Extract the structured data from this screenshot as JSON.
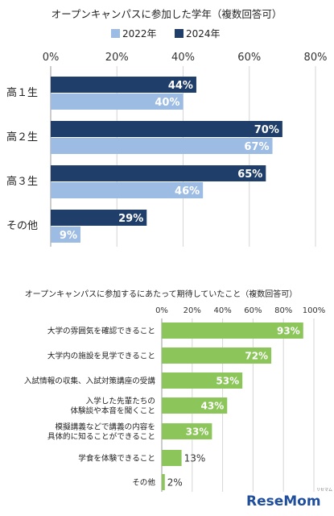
{
  "chart_data": [
    {
      "type": "bar",
      "orientation": "horizontal",
      "title": "オープンキャンパスに参加した学年（複数回答可）",
      "categories": [
        "高１生",
        "高２生",
        "高３生",
        "その他"
      ],
      "series": [
        {
          "name": "2024年",
          "values": [
            44,
            70,
            65,
            29
          ],
          "labels": [
            "44%",
            "70%",
            "65%",
            "29%"
          ],
          "color": "#1f3e6a"
        },
        {
          "name": "2022年",
          "values": [
            40,
            67,
            46,
            9
          ],
          "labels": [
            "40%",
            "67%",
            "46%",
            "9%"
          ],
          "color": "#9dbce3"
        }
      ],
      "legend": {
        "items": [
          "2022年",
          "2024年"
        ],
        "placement": "top"
      },
      "xlim": [
        0,
        80
      ],
      "xticks": [
        "0%",
        "20%",
        "40%",
        "60%",
        "80%"
      ],
      "grid": true
    },
    {
      "type": "bar",
      "orientation": "horizontal",
      "title": "オープンキャンパスに参加するにあたって期待していたこと（複数回答可）",
      "categories": [
        [
          "大学の雰囲気を確認できること"
        ],
        [
          "大学内の施設を見学できること"
        ],
        [
          "入試情報の収集、入試対策講座の受講"
        ],
        [
          "入学した先輩たちの",
          "体験談や本音を聞くこと"
        ],
        [
          "模擬講義などで講義の内容を",
          "具体的に知ることができること"
        ],
        [
          "学食を体験できること"
        ],
        [
          "その他"
        ]
      ],
      "values": [
        93,
        72,
        53,
        43,
        33,
        13,
        2
      ],
      "labels": [
        "93%",
        "72%",
        "53%",
        "43%",
        "33%",
        "13%",
        "2%"
      ],
      "color": "#8cc65a",
      "xlim": [
        0,
        100
      ],
      "xticks": [
        "0%",
        "20%",
        "40%",
        "60%",
        "80%",
        "100%"
      ],
      "grid": true
    }
  ],
  "branding": {
    "logo": "ReseMom",
    "logo_sub": "リセマム"
  }
}
